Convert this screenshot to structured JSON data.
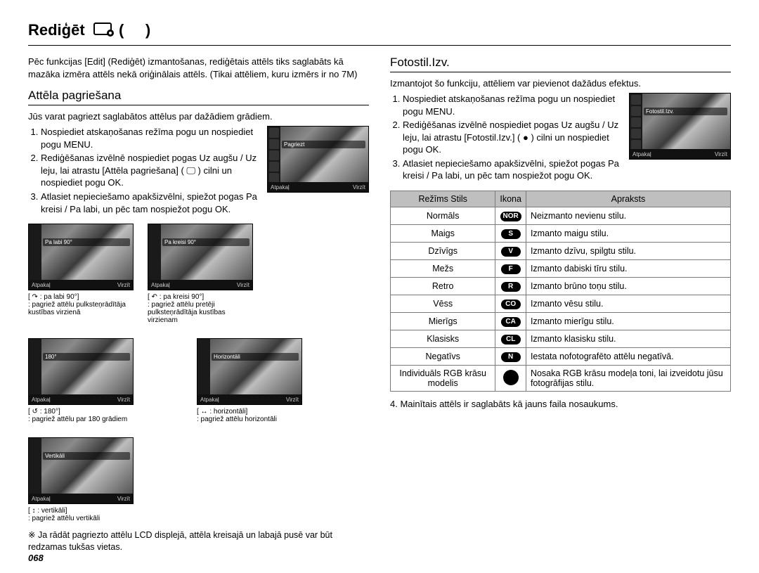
{
  "title": "Rediģēt",
  "pagenum": "068",
  "left": {
    "intro": "Pēc funkcijas [Edit] (Rediģēt) izmantošanas, rediģētais attēls tiks saglabāts kā mazāka izmēra attēls nekā oriģinālais attēls. (Tikai attēliem, kuru izmērs ir no 7M)",
    "subhead": "Attēla pagriešana",
    "lead": "Jūs varat pagriezt saglabātos attēlus par dažādiem grādiem.",
    "steps": [
      "Nospiediet atskaņošanas režīma pogu un nospiediet pogu MENU.",
      "Rediģēšanas izvēlnē nospiediet pogas Uz augšu / Uz leju, lai atrastu [Attēla pagriešana] ( 🖵 ) cilni un nospiediet pogu OK.",
      "Atlasiet nepieciešamo apakšizvēlni, spiežot pogas Pa kreisi / Pa labi, un pēc tam nospiežot pogu OK."
    ],
    "thumb": {
      "caption": "Pagriezt",
      "back": "Atpakaļ",
      "move": "Virzīt"
    },
    "grid": [
      {
        "caption": "Pa labi 90°",
        "label": "[ ↷ : pa labi 90°]",
        "desc": ": pagriež attēlu pulksteņrādītāja kustības virzienā"
      },
      {
        "caption": "Pa kreisi 90°",
        "label": "[ ↶ : pa kreisi 90°]",
        "desc": ": pagriež attēlu pretēji pulksteņrādītāja kustības virzienam"
      },
      {
        "caption": "180°",
        "label": "[ ↺ : 180°]",
        "desc": ": pagriež attēlu par 180 grādiem"
      },
      {
        "caption": "Horizontāli",
        "label": "[ ↔ : horizontāli]",
        "desc": ": pagriež attēlu horizontāli"
      },
      {
        "caption": "Vertikāli",
        "label": "[ ↕ : vertikāli]",
        "desc": ": pagriež attēlu vertikāli"
      }
    ],
    "note": "※ Ja rādāt pagriezto attēlu LCD displejā, attēla kreisajā un labajā pusē var būt redzamas tukšas vietas."
  },
  "right": {
    "subhead": "Fotostil.Izv.",
    "lead": "Izmantojot šo funkciju, attēliem var pievienot dažādus efektus.",
    "steps": [
      "Nospiediet atskaņošanas režīma pogu un nospiediet pogu MENU.",
      "Rediģēšanas izvēlnē nospiediet pogas Uz augšu / Uz leju, lai atrastu [Fotostil.Izv.] ( ● ) cilni un nospiediet pogu OK.",
      "Atlasiet nepieciešamo apakšizvēlni, spiežot pogas Pa kreisi / Pa labi, un pēc tam nospiežot pogu OK."
    ],
    "thumb": {
      "caption": "Fotostil.Izv.",
      "back": "Atpakaļ",
      "move": "Virzīt"
    },
    "table": {
      "cols": [
        "Režīms Stils",
        "Ikona",
        "Apraksts"
      ],
      "rows": [
        {
          "style": "Normāls",
          "icon": "NOR",
          "desc": "Neizmanto nevienu stilu."
        },
        {
          "style": "Maigs",
          "icon": "S",
          "desc": "Izmanto maigu stilu."
        },
        {
          "style": "Dzīvīgs",
          "icon": "V",
          "desc": "Izmanto dzīvu, spilgtu stilu."
        },
        {
          "style": "Mežs",
          "icon": "F",
          "desc": "Izmanto dabiski tīru stilu."
        },
        {
          "style": "Retro",
          "icon": "R",
          "desc": "Izmanto brūno toņu stilu."
        },
        {
          "style": "Vēss",
          "icon": "CO",
          "desc": "Izmanto vēsu stilu."
        },
        {
          "style": "Mierīgs",
          "icon": "CA",
          "desc": "Izmanto mierīgu stilu."
        },
        {
          "style": "Klasisks",
          "icon": "CL",
          "desc": "Izmanto klasisku stilu."
        },
        {
          "style": "Negatīvs",
          "icon": "N",
          "desc": "Iestata nofotografēto attēlu negatīvā."
        },
        {
          "style": "Individuāls RGB krāsu modelis",
          "icon": "●",
          "desc": "Nosaka RGB krāsu modeļa toni, lai izveidotu jūsu fotogrāfijas stilu."
        }
      ]
    },
    "after": "4. Mainītais attēls ir saglabāts kā jauns faila nosaukums."
  }
}
